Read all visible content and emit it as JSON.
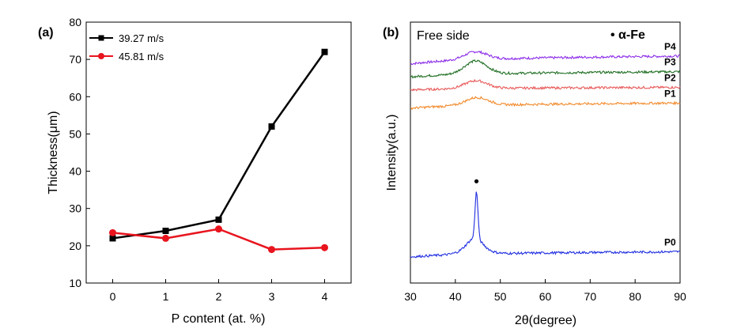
{
  "chart_data": [
    {
      "panel_label": "(a)",
      "type": "line",
      "xlabel": "P content (at. %)",
      "ylabel": "Thickness(μm)",
      "xlim": [
        -0.5,
        4.5
      ],
      "ylim": [
        10,
        80
      ],
      "xticks": [
        0,
        1,
        2,
        3,
        4
      ],
      "yticks": [
        10,
        20,
        30,
        40,
        50,
        60,
        70,
        80
      ],
      "x": [
        0,
        1,
        2,
        3,
        4
      ],
      "series": [
        {
          "name": "39.27 m/s",
          "color": "#000000",
          "marker": "square",
          "values": [
            22,
            24,
            27,
            52,
            72
          ]
        },
        {
          "name": "45.81 m/s",
          "color": "#e8141e",
          "marker": "circle",
          "values": [
            23.5,
            22,
            24.5,
            19,
            19.5
          ]
        }
      ],
      "legend": "top-left"
    },
    {
      "panel_label": "(b)",
      "type": "line",
      "title": "Free side",
      "xlabel": "2θ(degree)",
      "ylabel": "Intensity(a.u.)",
      "xlim": [
        30,
        90
      ],
      "xticks": [
        30,
        40,
        50,
        60,
        70,
        80,
        90
      ],
      "annotation": "• α-Fe",
      "peak_marker_x": 44.7,
      "series": [
        {
          "name": "P4",
          "color": "#8b2be8",
          "start": 84,
          "end": 87,
          "hump_x": 44.5,
          "hump": 3,
          "peak": 0
        },
        {
          "name": "P3",
          "color": "#1f6e22",
          "start": 79,
          "end": 81,
          "hump_x": 44.5,
          "hump": 5,
          "peak": 0
        },
        {
          "name": "P2",
          "color": "#e85a5a",
          "start": 74,
          "end": 75,
          "hump_x": 44.6,
          "hump": 3,
          "peak": 0
        },
        {
          "name": "P1",
          "color": "#f28a2c",
          "start": 67,
          "end": 69,
          "hump_x": 44.8,
          "hump": 3,
          "peak": 0
        },
        {
          "name": "P0",
          "color": "#1f2ee0",
          "start": 10,
          "end": 12,
          "hump_x": 44.3,
          "hump": 3,
          "peak": 18
        }
      ]
    }
  ]
}
